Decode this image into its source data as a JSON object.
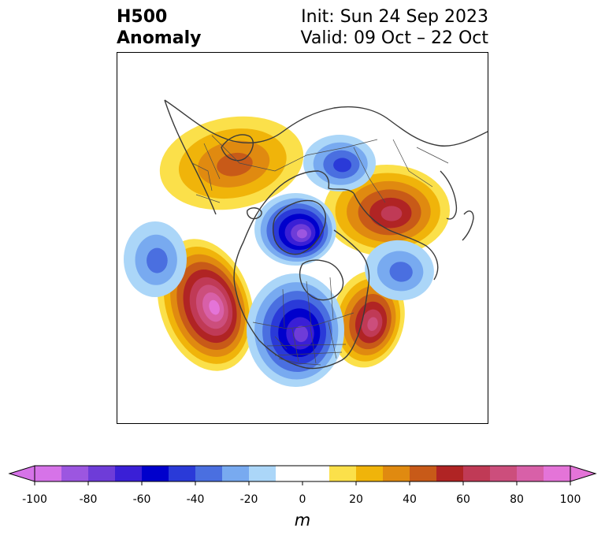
{
  "title": {
    "left_line1": "H500",
    "left_line2": "Anomaly",
    "right_line1": "Init: Sun 24 Sep 2023",
    "right_line2": "Valid: 09 Oct – 22 Oct"
  },
  "colorbar": {
    "units": "m",
    "ticks": [
      "-100",
      "-80",
      "-60",
      "-40",
      "-20",
      "0",
      "20",
      "40",
      "60",
      "80",
      "100"
    ],
    "tick_values": [
      -100,
      -80,
      -60,
      -40,
      -20,
      0,
      20,
      40,
      60,
      80,
      100
    ],
    "levels": [
      -100,
      -90,
      -80,
      -70,
      -60,
      -50,
      -40,
      -30,
      -20,
      -10,
      10,
      20,
      30,
      40,
      50,
      60,
      70,
      80,
      90,
      100
    ],
    "colors": [
      "#d673e8",
      "#9c56e0",
      "#6e3cd8",
      "#3a1fd6",
      "#0000cc",
      "#2a3ad8",
      "#4a6fe0",
      "#78aaf0",
      "#abd6f8",
      "#ffffff",
      "#fbe04a",
      "#f0b40a",
      "#e08a10",
      "#c85a18",
      "#b02424",
      "#c03a56",
      "#cc4e7c",
      "#d860a8",
      "#e474d8"
    ],
    "under_color": "#d673e8",
    "over_color": "#e474d8"
  },
  "map": {
    "projection": "north-polar-stereographic",
    "anomaly_centers": [
      {
        "region": "Alaska/Beaufort",
        "sign": "positive",
        "peak": 45
      },
      {
        "region": "Northeast Pacific",
        "sign": "positive",
        "peak": 95
      },
      {
        "region": "Western Atlantic",
        "sign": "positive",
        "peak": 70
      },
      {
        "region": "Siberia",
        "sign": "positive",
        "peak": 65
      },
      {
        "region": "Canadian Arctic",
        "sign": "negative",
        "peak": -85
      },
      {
        "region": "Central North America",
        "sign": "negative",
        "peak": -70
      },
      {
        "region": "Kara Sea",
        "sign": "negative",
        "peak": -40
      },
      {
        "region": "Central Pacific",
        "sign": "negative",
        "peak": -30
      },
      {
        "region": "Eastern Atlantic",
        "sign": "negative",
        "peak": -30
      }
    ]
  }
}
